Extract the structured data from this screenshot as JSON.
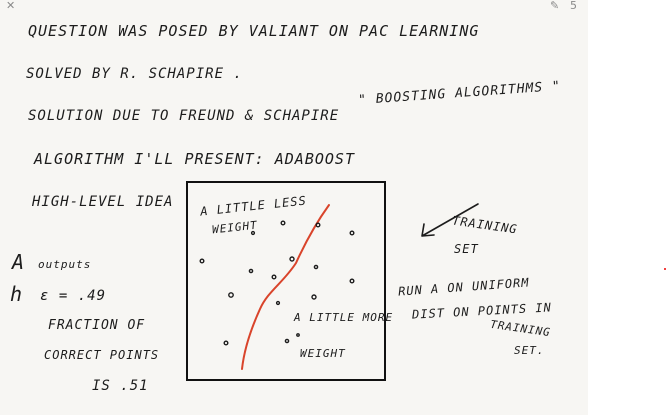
{
  "toolbar": {
    "close_icon": "close-icon",
    "pen_icon": "pen-icon",
    "page_count": "5"
  },
  "notes": {
    "line1": "QUESTION WAS POSED BY VALIANT ON PAC LEARNING",
    "line2": "SOLVED BY R. SCHAPIRE .",
    "line3": "SOLUTION DUE TO FREUND & SCHAPIRE",
    "boosting": "\" BOOSTING ALGORITHMS \"",
    "line4": "ALGORITHM I'LL PRESENT: ADABOOST",
    "line5": "HIGH-LEVEL IDEA",
    "a_outputs_a": "A",
    "a_outputs_b": "outputs",
    "h_epsilon_a": "h",
    "h_epsilon_b": "ε = .49",
    "fraction_1": "FRACTION OF",
    "fraction_2": "CORRECT POINTS",
    "fraction_3": "IS .51",
    "box_top_1": "A LITTLE LESS",
    "box_top_2": "WEIGHT",
    "box_bottom_1": "A LITTLE MORE",
    "box_bottom_2": "WEIGHT",
    "training_1": "TRAINING",
    "training_2": "SET",
    "run_1": "RUN A ON UNIFORM",
    "run_2": "DIST ON POINTS IN",
    "run_3": "TRAINING",
    "run_4": "SET."
  },
  "colors": {
    "ink": "#1c1c1c",
    "curve": "#d9442b",
    "paper": "#f7f6f3"
  }
}
